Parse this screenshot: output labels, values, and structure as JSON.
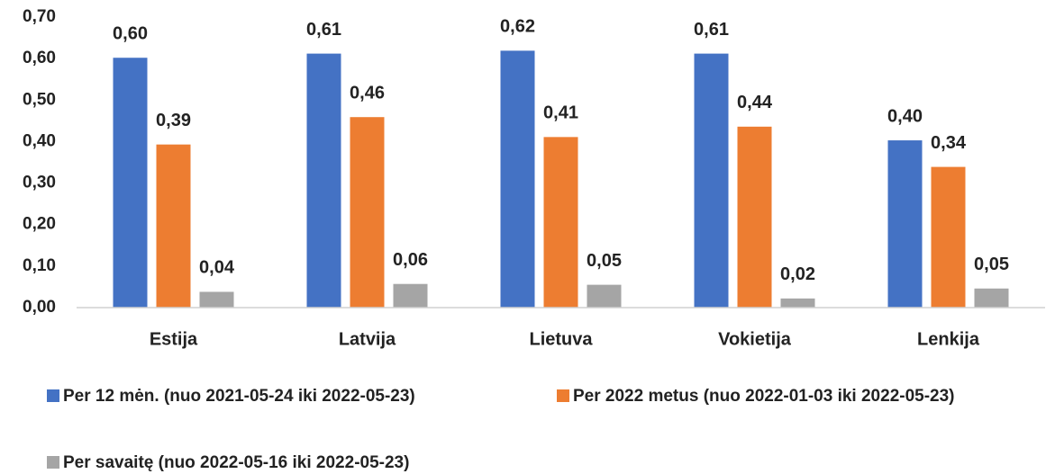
{
  "chart_data": {
    "type": "bar",
    "categories": [
      "Estija",
      "Latvija",
      "Lietuva",
      "Vokietija",
      "Lenkija"
    ],
    "series": [
      {
        "name": "Per 12 mėn. (nuo 2021-05-24 iki 2022-05-23)",
        "color": "#4472c4",
        "values": [
          0.602,
          0.612,
          0.619,
          0.612,
          0.403
        ],
        "value_labels": [
          "0,60",
          "0,61",
          "0,62",
          "0,61",
          "0,40"
        ]
      },
      {
        "name": "Per 2022 metus (nuo 2022-01-03 iki 2022-05-23)",
        "color": "#ed7d31",
        "values": [
          0.393,
          0.459,
          0.411,
          0.436,
          0.339
        ],
        "value_labels": [
          "0,39",
          "0,46",
          "0,41",
          "0,44",
          "0,34"
        ]
      },
      {
        "name": "Per savaitę (nuo 2022-05-16 iki 2022-05-23)",
        "color": "#a5a5a5",
        "values": [
          0.038,
          0.057,
          0.055,
          0.022,
          0.046
        ],
        "value_labels": [
          "0,04",
          "0,06",
          "0,05",
          "0,02",
          "0,05"
        ]
      }
    ],
    "ylim": [
      0,
      0.7
    ],
    "yticks": [
      {
        "value": 0,
        "label": "0,00"
      },
      {
        "value": 0.1,
        "label": "0,10"
      },
      {
        "value": 0.2,
        "label": "0,20"
      },
      {
        "value": 0.3,
        "label": "0,30"
      },
      {
        "value": 0.4,
        "label": "0,40"
      },
      {
        "value": 0.5,
        "label": "0,50"
      },
      {
        "value": 0.6,
        "label": "0,60"
      },
      {
        "value": 0.7,
        "label": "0,70"
      }
    ],
    "grid": false
  }
}
